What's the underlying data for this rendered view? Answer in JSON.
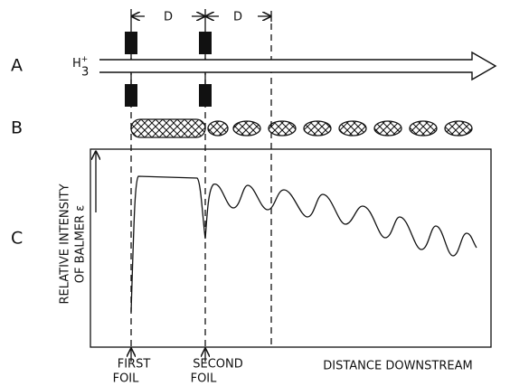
{
  "spacing_labels": [
    "D",
    "D"
  ],
  "rows": {
    "a": {
      "label": "A",
      "beam": {
        "symbol": "H",
        "subscript": "3",
        "superscript": "+"
      }
    },
    "b": {
      "label": "B"
    },
    "c": {
      "label": "C",
      "y_axis_label": [
        "RELATIVE INTENSITY",
        "OF BALMER ε"
      ]
    }
  },
  "markers": [
    {
      "lines": [
        "FIRST",
        "FOIL"
      ]
    },
    {
      "lines": [
        "SECOND",
        "FOIL"
      ]
    }
  ],
  "x_axis_label": "DISTANCE DOWNSTREAM"
}
